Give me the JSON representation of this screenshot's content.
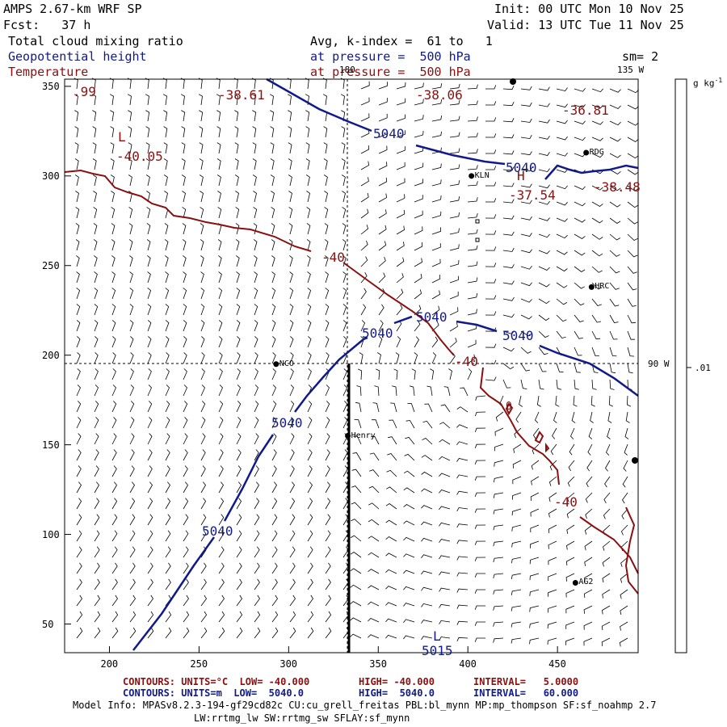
{
  "header": {
    "model": "AMPS 2.67-km WRF SP",
    "forecast": "Fcst:   37 h",
    "init": "Init: 00 UTC Mon 10 Nov 25",
    "valid": "Valid: 13 UTC Tue 11 Nov 25",
    "field1": "Total cloud mixing ratio",
    "field2": "Geopotential height",
    "field3": "Temperature",
    "avg": "Avg, k-index =  61 to   1",
    "pressure1": "at pressure =  500 hPa",
    "pressure2": "at pressure =  500 hPa",
    "sm": "sm= 2"
  },
  "map": {
    "x_ticks": [
      "200",
      "250",
      "300",
      "350",
      "400",
      "450"
    ],
    "y_ticks": [
      "350",
      "300",
      "250",
      "200",
      "150",
      "100",
      "50"
    ],
    "meridian_labels": {
      "top": "180",
      "right_top": "135 W",
      "right_mid": "90 W"
    },
    "stations": [
      {
        "name": "NCO",
        "gx": 293,
        "gy": 195
      },
      {
        "name": "Henry",
        "gx": 333,
        "gy": 155
      },
      {
        "name": "KLN",
        "gx": 402,
        "gy": 300
      },
      {
        "name": "RDG",
        "gx": 466,
        "gy": 313
      },
      {
        "name": "HRC",
        "gx": 469,
        "gy": 238
      },
      {
        "name": "AG2",
        "gx": 460,
        "gy": 73
      }
    ],
    "height_labels": [
      "5040",
      "5040",
      "5040",
      "5040",
      "5040",
      "5040",
      "5040",
      "5015"
    ],
    "temp_labels": [
      "-38.61",
      "-38.06",
      "-36.81",
      "-40.05",
      "-37.54",
      "-38.48",
      "-40",
      "-40",
      "-40",
      ".99",
      "0"
    ],
    "extrema_marks": [
      "L",
      "H",
      "L"
    ]
  },
  "colorbar": {
    "unit": "g kg",
    "unit_exp": "-1",
    "tick": ".01"
  },
  "legend": {
    "temp": {
      "contours": "CONTOURS:",
      "units": "UNITS=°C",
      "low": "LOW= -40.000",
      "high": "HIGH= -40.000",
      "interval": "INTERVAL=   5.0000"
    },
    "height": {
      "contours": "CONTOURS:",
      "units": "UNITS=m",
      "low": "LOW=  5040.0",
      "high": "HIGH=  5040.0",
      "interval": "INTERVAL=   60.000"
    }
  },
  "model_info": {
    "line1": "Model Info: MPASv8.2.3-194-gf29cd82c CU:cu_grell_freitas PBL:bl_mynn MP:mp_thompson SF:sf_noahmp 2.7",
    "line2": "LW:rrtmg_lw SW:rrtmg_sw SFLAY:sf_mynn"
  },
  "colors": {
    "height": "#101a8a",
    "temperature": "#8a1010",
    "frame": "#000000"
  }
}
